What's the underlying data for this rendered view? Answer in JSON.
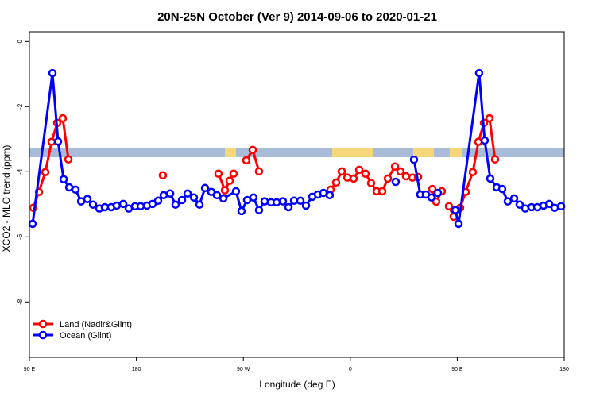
{
  "chart_data": {
    "type": "line",
    "title": "20N-25N October (Ver 9)   2014-09-06 to 2020-01-21",
    "x_label": "Longitude (deg E)",
    "y_label": "XCO2 - MLO trend (ppm)",
    "xlim": [
      90,
      540
    ],
    "xticks": [
      {
        "value": 90,
        "label": "90 E"
      },
      180,
      {
        "value": 270,
        "label": "90 W"
      },
      {
        "value": 360,
        "label": "0"
      },
      {
        "value": 450,
        "label": "90 E"
      },
      {
        "value": 540,
        "label": "180"
      }
    ],
    "ylim": [
      -9.7,
      0.3
    ],
    "yticks": [
      0,
      -2,
      -4,
      -6,
      -8
    ],
    "legend": "bottom-left",
    "series": [
      {
        "name": "Land (Nadir&Glint)",
        "color": "#ff0000",
        "x": [
          93.3,
          98,
          103.4,
          108.7,
          113.4,
          118.1,
          122.8,
          null,
          202.3,
          null,
          249.1,
          254.5,
          258.5,
          261.8,
          null,
          272.5,
          277.9,
          283.2,
          null,
          343.4,
          348.1,
          352.8,
          357.5,
          362.8,
          367.5,
          372.8,
          377.5,
          382.2,
          386.9,
          391.6,
          397.6,
          402.2,
          406.9,
          412.3,
          417,
          null,
          429,
          432.3,
          437,
          null,
          443,
          447,
          452.4,
          457.1,
          463.1,
          467.8,
          472.5,
          477.1,
          481.8
        ],
        "values": [
          -5.11,
          -4.62,
          -4.01,
          -3.08,
          -2.5,
          -2.36,
          -3.62,
          null,
          -4.11,
          null,
          -4.06,
          -4.57,
          -4.28,
          -4.06,
          null,
          -3.65,
          -3.33,
          -3.99,
          null,
          -4.55,
          -4.33,
          -3.99,
          -4.18,
          -4.21,
          -3.94,
          -4.06,
          -4.35,
          -4.6,
          -4.6,
          -4.21,
          -3.84,
          -3.99,
          -4.14,
          -4.18,
          -4.16,
          null,
          -4.53,
          -4.92,
          -4.6,
          null,
          -5.06,
          -5.38,
          -5.11,
          -4.62,
          -4.01,
          -3.08,
          -2.5,
          -2.36,
          -3.62
        ]
      },
      {
        "name": "Ocean (Glint)",
        "color": "#0000ff",
        "x": [
          92.7,
          109.4,
          114.1,
          118.8,
          123.5,
          128.8,
          133.5,
          138.8,
          143.5,
          148.8,
          153.5,
          158.8,
          163.5,
          168.9,
          173.6,
          178.9,
          183.6,
          188.9,
          193.6,
          198.3,
          203,
          208.4,
          213,
          218.4,
          223.1,
          228.4,
          233.1,
          237.8,
          243.1,
          247.8,
          253.2,
          263.8,
          268.5,
          273.2,
          278.5,
          283.2,
          287.9,
          293.3,
          298,
          303.3,
          308,
          312.7,
          318,
          322.7,
          328,
          332.7,
          337.4,
          342.7,
          null,
          398.2,
          null,
          413.6,
          418.9,
          423.6,
          428.3,
          433.7,
          null,
          448.4,
          451.1,
          468.4,
          473.1,
          477.8,
          483.2,
          487.8,
          492.5,
          497.9,
          502.5,
          507.2,
          512.6,
          517.3,
          522.6,
          527.3,
          532,
          537.4
        ],
        "values": [
          -5.6,
          -0.97,
          -3.07,
          -4.23,
          -4.48,
          -4.55,
          -4.91,
          -4.84,
          -5.01,
          -5.13,
          -5.09,
          -5.09,
          -5.04,
          -4.99,
          -5.13,
          -5.06,
          -5.06,
          -5.04,
          -4.99,
          -4.89,
          -4.72,
          -4.67,
          -5.01,
          -4.87,
          -4.67,
          -4.79,
          -5.01,
          -4.5,
          -4.62,
          -4.72,
          -4.82,
          -4.6,
          -5.21,
          -4.87,
          -4.79,
          -5.18,
          -4.91,
          -4.94,
          -4.94,
          -4.91,
          -5.09,
          -4.89,
          -4.89,
          -5.04,
          -4.77,
          -4.7,
          -4.65,
          -4.72,
          null,
          -4.31,
          null,
          -3.63,
          -4.7,
          -4.7,
          -4.79,
          -4.65,
          null,
          -5.18,
          -5.6,
          -0.97,
          -3.04,
          -4.21,
          -4.48,
          -4.53,
          -4.91,
          -4.82,
          -5.01,
          -5.13,
          -5.09,
          -5.09,
          -5.04,
          -4.99,
          -5.11,
          -5.06
        ]
      }
    ]
  }
}
